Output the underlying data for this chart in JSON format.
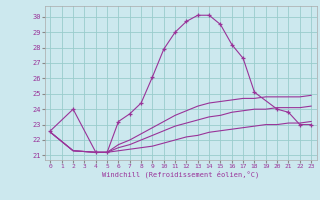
{
  "title": "",
  "xlabel": "Windchill (Refroidissement éolien,°C)",
  "bg_color": "#cce8ee",
  "line_color": "#993399",
  "grid_color": "#99cccc",
  "xlim": [
    -0.5,
    23.5
  ],
  "ylim": [
    20.7,
    30.7
  ],
  "yticks": [
    21,
    22,
    23,
    24,
    25,
    26,
    27,
    28,
    29,
    30
  ],
  "xticks": [
    0,
    1,
    2,
    3,
    4,
    5,
    6,
    7,
    8,
    9,
    10,
    11,
    12,
    13,
    14,
    15,
    16,
    17,
    18,
    19,
    20,
    21,
    22,
    23
  ],
  "series1_x": [
    0,
    2,
    4,
    5,
    6,
    7,
    8,
    9,
    10,
    11,
    12,
    13,
    14,
    15,
    16,
    17,
    18,
    20,
    21,
    22,
    23
  ],
  "series1_y": [
    22.6,
    24.0,
    21.2,
    21.2,
    23.2,
    23.7,
    24.4,
    26.1,
    27.9,
    29.0,
    29.7,
    30.1,
    30.1,
    29.5,
    28.2,
    27.3,
    25.1,
    24.0,
    23.8,
    23.0,
    23.0
  ],
  "series2_x": [
    0,
    2,
    4,
    5,
    6,
    7,
    8,
    9,
    10,
    11,
    12,
    13,
    14,
    15,
    16,
    17,
    18,
    19,
    20,
    21,
    22,
    23
  ],
  "series2_y": [
    22.5,
    21.3,
    21.2,
    21.2,
    21.3,
    21.4,
    21.5,
    21.6,
    21.8,
    22.0,
    22.2,
    22.3,
    22.5,
    22.6,
    22.7,
    22.8,
    22.9,
    23.0,
    23.0,
    23.1,
    23.1,
    23.2
  ],
  "series3_x": [
    0,
    2,
    4,
    5,
    6,
    7,
    8,
    9,
    10,
    11,
    12,
    13,
    14,
    15,
    16,
    17,
    18,
    19,
    20,
    21,
    22,
    23
  ],
  "series3_y": [
    22.5,
    21.3,
    21.2,
    21.2,
    21.5,
    21.7,
    22.0,
    22.3,
    22.6,
    22.9,
    23.1,
    23.3,
    23.5,
    23.6,
    23.8,
    23.9,
    24.0,
    24.0,
    24.1,
    24.1,
    24.1,
    24.2
  ],
  "series4_x": [
    0,
    2,
    4,
    5,
    6,
    7,
    8,
    9,
    10,
    11,
    12,
    13,
    14,
    15,
    16,
    17,
    18,
    19,
    20,
    21,
    22,
    23
  ],
  "series4_y": [
    22.5,
    21.3,
    21.2,
    21.2,
    21.7,
    22.0,
    22.4,
    22.8,
    23.2,
    23.6,
    23.9,
    24.2,
    24.4,
    24.5,
    24.6,
    24.7,
    24.7,
    24.8,
    24.8,
    24.8,
    24.8,
    24.9
  ]
}
